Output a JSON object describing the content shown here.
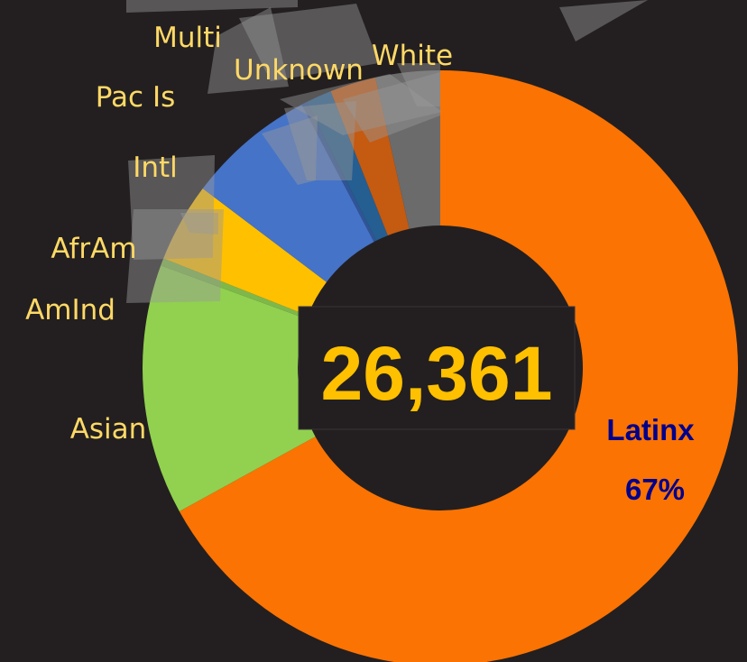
{
  "chart_data": {
    "type": "pie",
    "donut": true,
    "center_total": "26,361",
    "slices": [
      {
        "label": "Latinx",
        "percent_label": "67%",
        "value": 67,
        "color": "#fb7303"
      },
      {
        "label": "Asian",
        "percent_label": "",
        "value": 13.6,
        "color": "#91d14f"
      },
      {
        "label": "AmInd",
        "percent_label": "",
        "value": 0.4,
        "color": "#7fb84a"
      },
      {
        "label": "AfrAm",
        "percent_label": "",
        "value": 4.3,
        "color": "#ffc000"
      },
      {
        "label": "Intl",
        "percent_label": "",
        "value": 7.0,
        "color": "#4573c8"
      },
      {
        "label": "Pac Is",
        "percent_label": "",
        "value": 0.3,
        "color": "#2f5597"
      },
      {
        "label": "Multi",
        "percent_label": "",
        "value": 1.4,
        "color": "#255e91"
      },
      {
        "label": "Unknown",
        "percent_label": "",
        "value": 2.5,
        "color": "#c55a11"
      },
      {
        "label": "White",
        "percent_label": "",
        "value": 3.5,
        "color": "#6b6b6b"
      }
    ],
    "label_color": "#ffd966",
    "highlight_label_color": "#00008b",
    "total_color": "#ffc000"
  }
}
